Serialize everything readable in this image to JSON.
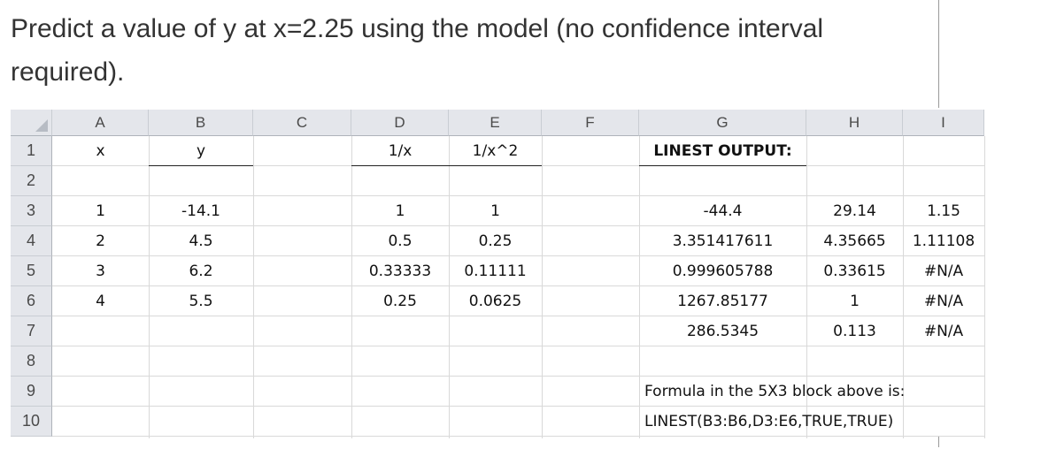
{
  "question": "Predict a value of y at x=2.25 using the model (no confidence interval required).",
  "spreadsheet": {
    "column_headers": [
      "A",
      "B",
      "C",
      "D",
      "E",
      "F",
      "G",
      "H",
      "I"
    ],
    "row_headers": [
      "1",
      "2",
      "3",
      "4",
      "5",
      "6",
      "7",
      "8",
      "9",
      "10"
    ],
    "cells": {
      "A1": "x",
      "B1": "y",
      "D1": "1/x",
      "E1": "1/x^2",
      "G1": "LINEST OUTPUT:",
      "A3": "1",
      "B3": "-14.1",
      "D3": "1",
      "E3": "1",
      "G3": "-44.4",
      "H3": "29.14",
      "I3": "1.15",
      "A4": "2",
      "B4": "4.5",
      "D4": "0.5",
      "E4": "0.25",
      "G4": "3.351417611",
      "H4": "4.35665",
      "I4": "1.11108",
      "A5": "3",
      "B5": "6.2",
      "D5": "0.33333",
      "E5": "0.11111",
      "G5": "0.999605788",
      "H5": "0.33615",
      "I5": "#N/A",
      "A6": "4",
      "B6": "5.5",
      "D6": "0.25",
      "E6": "0.0625",
      "G6": "1267.85177",
      "H6": "1",
      "I6": "#N/A",
      "G7": "286.5345",
      "H7": "0.113",
      "I7": "#N/A",
      "G9": "Formula in the 5X3 block above is:",
      "G10": "LINEST(B3:B6,D3:E6,TRUE,TRUE)"
    }
  }
}
